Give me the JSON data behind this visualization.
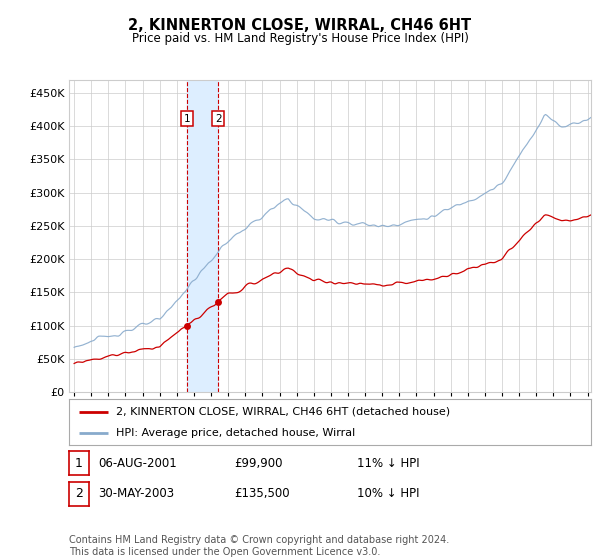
{
  "title": "2, KINNERTON CLOSE, WIRRAL, CH46 6HT",
  "subtitle": "Price paid vs. HM Land Registry's House Price Index (HPI)",
  "footnote": "Contains HM Land Registry data © Crown copyright and database right 2024.\nThis data is licensed under the Open Government Licence v3.0.",
  "legend_line1": "2, KINNERTON CLOSE, WIRRAL, CH46 6HT (detached house)",
  "legend_line2": "HPI: Average price, detached house, Wirral",
  "transaction1_label": "1",
  "transaction1_date": "06-AUG-2001",
  "transaction1_price": "£99,900",
  "transaction1_pct": "11% ↓ HPI",
  "transaction1_year": 2001.6,
  "transaction1_price_val": 99900,
  "transaction2_label": "2",
  "transaction2_date": "30-MAY-2003",
  "transaction2_price": "£135,500",
  "transaction2_pct": "10% ↓ HPI",
  "transaction2_year": 2003.42,
  "transaction2_price_val": 135500,
  "price_color": "#cc0000",
  "hpi_color": "#88aacc",
  "shade_color": "#ddeeff",
  "grid_color": "#cccccc",
  "background_color": "#ffffff",
  "ylim_min": 0,
  "ylim_max": 470000,
  "ytick_values": [
    0,
    50000,
    100000,
    150000,
    200000,
    250000,
    300000,
    350000,
    400000,
    450000
  ],
  "year_start": 1995,
  "year_end": 2025
}
